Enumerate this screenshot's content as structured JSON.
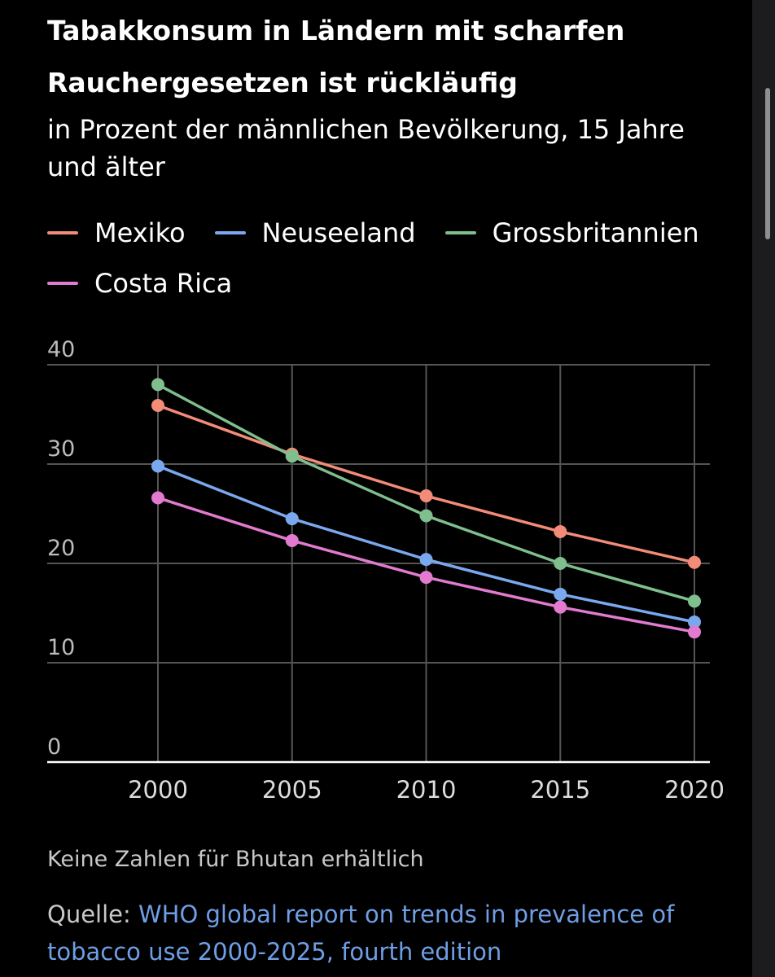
{
  "title": "Tabakkonsum in Ländern mit scharfen Rauchergesetzen ist rückläufig",
  "subtitle": "in Prozent der männlichen Bevölkerung, 15 Jahre und älter",
  "legend": [
    {
      "name": "Mexiko",
      "color": "#f28b78"
    },
    {
      "name": "Neuseeland",
      "color": "#7aa8ee"
    },
    {
      "name": "Grossbritannien",
      "color": "#7fbf8e"
    },
    {
      "name": "Costa Rica",
      "color": "#e27ad0"
    }
  ],
  "chart_data": {
    "type": "line",
    "title": "Tabakkonsum in Ländern mit scharfen Rauchergesetzen ist rückläufig",
    "subtitle": "in Prozent der männlichen Bevölkerung, 15 Jahre und älter",
    "xlabel": "",
    "ylabel": "",
    "x": [
      2000,
      2005,
      2010,
      2015,
      2020
    ],
    "x_tick_labels": [
      "2000",
      "2005",
      "2010",
      "2015",
      "2020"
    ],
    "y_ticks": [
      0,
      10,
      20,
      30,
      40
    ],
    "y_tick_labels": [
      "0",
      "10",
      "20",
      "30",
      "40"
    ],
    "ylim": [
      0,
      40
    ],
    "grid": true,
    "legend_position": "top-left",
    "series": [
      {
        "name": "Mexiko",
        "color": "#f28b78",
        "values": [
          35.9,
          31.0,
          26.8,
          23.2,
          20.1
        ]
      },
      {
        "name": "Neuseeland",
        "color": "#7aa8ee",
        "values": [
          29.8,
          24.5,
          20.4,
          16.9,
          14.1
        ]
      },
      {
        "name": "Grossbritannien",
        "color": "#7fbf8e",
        "values": [
          38.0,
          30.8,
          24.8,
          20.0,
          16.2
        ]
      },
      {
        "name": "Costa Rica",
        "color": "#e27ad0",
        "values": [
          26.6,
          22.3,
          18.6,
          15.6,
          13.1
        ]
      }
    ]
  },
  "note": "Keine Zahlen für Bhutan erhältlich",
  "source": {
    "label": "Quelle: ",
    "link_text": "WHO global report on trends in prevalence of tobacco use 2000-2025, fourth edition",
    "link_color": "#6f9ee6"
  }
}
